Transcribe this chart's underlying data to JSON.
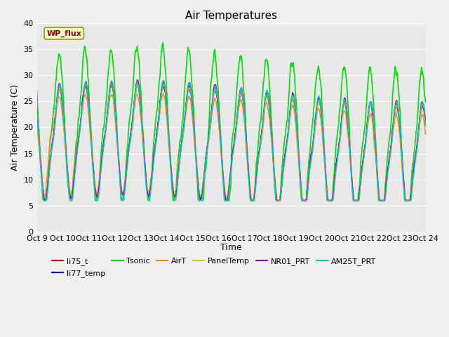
{
  "title": "Air Temperatures",
  "xlabel": "Time",
  "ylabel": "Air Temperature (C)",
  "ylim": [
    0,
    40
  ],
  "yticks": [
    0,
    5,
    10,
    15,
    20,
    25,
    30,
    35,
    40
  ],
  "series_names": [
    "li75_t",
    "li77_temp",
    "Tsonic",
    "AirT",
    "PanelTemp",
    "NR01_PRT",
    "AM25T_PRT"
  ],
  "series_colors": [
    "#dd0000",
    "#0000dd",
    "#00dd00",
    "#ff8800",
    "#cccc00",
    "#9900cc",
    "#00cccc"
  ],
  "series_linewidths": [
    1.0,
    1.0,
    1.2,
    1.0,
    1.0,
    1.0,
    1.0
  ],
  "xtick_labels": [
    "Oct 9",
    "Oct 10",
    "Oct 11",
    "Oct 12",
    "Oct 13",
    "Oct 14",
    "Oct 15",
    "Oct 16",
    "Oct 17",
    "Oct 18",
    "Oct 19",
    "Oct 20",
    "Oct 21",
    "Oct 22",
    "Oct 23",
    "Oct 24"
  ],
  "n_days": 15,
  "pts_per_day": 96,
  "bg_color": "#e8e8e8",
  "plot_bg_color": "#e8e8e8",
  "legend_items": [
    {
      "label": "li75_t",
      "color": "#dd0000"
    },
    {
      "label": "li77_temp",
      "color": "#0000dd"
    },
    {
      "label": "Tsonic",
      "color": "#00dd00"
    },
    {
      "label": "AirT",
      "color": "#ff8800"
    },
    {
      "label": "PanelTemp",
      "color": "#cccc00"
    },
    {
      "label": "NR01_PRT",
      "color": "#9900cc"
    },
    {
      "label": "AM25T_PRT",
      "color": "#00cccc"
    }
  ],
  "wp_flux_label": "WP_flux",
  "wp_flux_bg": "#ffffcc",
  "wp_flux_text_color": "#880000"
}
